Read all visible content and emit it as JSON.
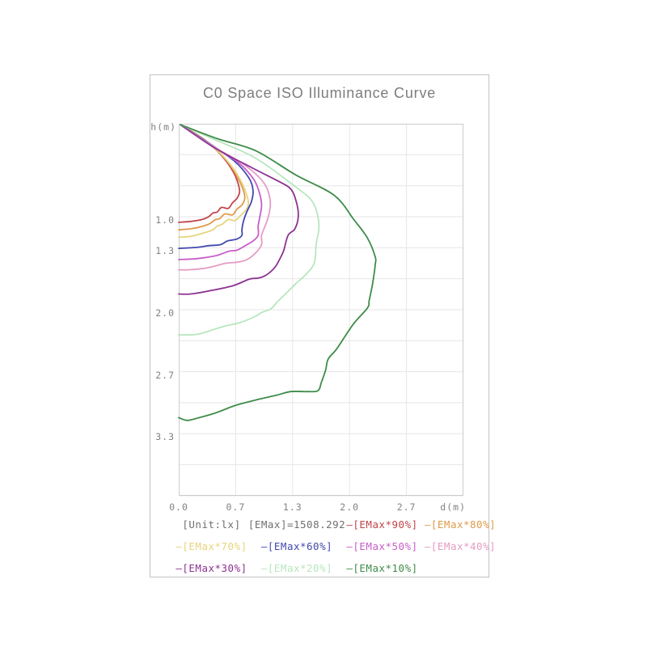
{
  "card": {
    "border_color": "#c6c6c6"
  },
  "colors": {
    "title_text": "#7d7d7d",
    "axis_text": "#828282",
    "info_text": "#6f6f6f",
    "grid": "#e6e6e6",
    "plot_border": "#cccccc"
  },
  "chart_data": {
    "type": "line",
    "title": "C0 Space ISO Illuminance Curve",
    "unit_label": "[Unit:lx]",
    "emax_label": "[EMax]=1508.292",
    "emax_lux": 1508.292,
    "x_axis": {
      "label": "d(m)",
      "range": [
        0,
        3.3333
      ],
      "grid_step": 0.6667,
      "ticks": [
        {
          "value": 0,
          "label": "0.0"
        },
        {
          "value": 0.6667,
          "label": "0.7"
        },
        {
          "value": 1.3333,
          "label": "1.3"
        },
        {
          "value": 2.0,
          "label": "2.0"
        },
        {
          "value": 2.6667,
          "label": "2.7"
        }
      ]
    },
    "y_axis": {
      "label": "h(m)",
      "range": [
        0,
        4.0
      ],
      "grid_step": 0.3333,
      "ticks": [
        {
          "value": 1.0,
          "label": "1.0"
        },
        {
          "value": 1.3333,
          "label": "1.3"
        },
        {
          "value": 2.0,
          "label": "2.0"
        },
        {
          "value": 2.6667,
          "label": "2.7"
        },
        {
          "value": 3.3333,
          "label": "3.3"
        }
      ]
    },
    "legend_info": [
      {
        "label": "[Unit:lx]",
        "color": "#6f6f6f"
      },
      {
        "label": "[EMax]=1508.292",
        "color": "#6f6f6f"
      }
    ],
    "series": [
      {
        "name": "[EMax*90%]",
        "percent": 90,
        "color": "#c2454b",
        "points": [
          [
            0.02,
            0.01
          ],
          [
            0.28,
            0.16
          ],
          [
            0.49,
            0.33
          ],
          [
            0.64,
            0.52
          ],
          [
            0.71,
            0.7
          ],
          [
            0.69,
            0.79
          ],
          [
            0.63,
            0.85
          ],
          [
            0.58,
            0.91
          ],
          [
            0.5,
            0.9
          ],
          [
            0.45,
            0.95
          ],
          [
            0.4,
            0.96
          ],
          [
            0.35,
            1.0
          ],
          [
            0.27,
            1.03
          ],
          [
            0.14,
            1.05
          ],
          [
            0.0,
            1.06
          ]
        ]
      },
      {
        "name": "[EMax*80%]",
        "percent": 80,
        "color": "#df9a4a",
        "points": [
          [
            0.02,
            0.01
          ],
          [
            0.3,
            0.17
          ],
          [
            0.53,
            0.36
          ],
          [
            0.68,
            0.56
          ],
          [
            0.77,
            0.76
          ],
          [
            0.75,
            0.86
          ],
          [
            0.68,
            0.92
          ],
          [
            0.63,
            0.98
          ],
          [
            0.54,
            0.97
          ],
          [
            0.48,
            1.02
          ],
          [
            0.43,
            1.03
          ],
          [
            0.37,
            1.07
          ],
          [
            0.29,
            1.1
          ],
          [
            0.14,
            1.13
          ],
          [
            0.0,
            1.14
          ]
        ]
      },
      {
        "name": "[EMax*70%]",
        "percent": 70,
        "color": "#e7d47e",
        "points": [
          [
            0.02,
            0.01
          ],
          [
            0.32,
            0.19
          ],
          [
            0.56,
            0.39
          ],
          [
            0.72,
            0.6
          ],
          [
            0.81,
            0.81
          ],
          [
            0.8,
            0.91
          ],
          [
            0.73,
            0.98
          ],
          [
            0.66,
            1.04
          ],
          [
            0.58,
            1.03
          ],
          [
            0.51,
            1.08
          ],
          [
            0.45,
            1.1
          ],
          [
            0.4,
            1.14
          ],
          [
            0.31,
            1.17
          ],
          [
            0.14,
            1.21
          ],
          [
            0.0,
            1.22
          ]
        ]
      },
      {
        "name": "[EMax*60%]",
        "percent": 60,
        "color": "#4149ae",
        "points": [
          [
            0.02,
            0.01
          ],
          [
            0.34,
            0.2
          ],
          [
            0.65,
            0.4
          ],
          [
            0.82,
            0.58
          ],
          [
            0.87,
            0.72
          ],
          [
            0.85,
            0.84
          ],
          [
            0.8,
            0.94
          ],
          [
            0.76,
            1.04
          ],
          [
            0.74,
            1.14
          ],
          [
            0.74,
            1.2
          ],
          [
            0.68,
            1.24
          ],
          [
            0.57,
            1.26
          ],
          [
            0.49,
            1.3
          ],
          [
            0.36,
            1.31
          ],
          [
            0.2,
            1.33
          ],
          [
            0.0,
            1.34
          ]
        ]
      },
      {
        "name": "[EMax*50%]",
        "percent": 50,
        "color": "#c75ec7",
        "points": [
          [
            0.02,
            0.01
          ],
          [
            0.36,
            0.22
          ],
          [
            0.7,
            0.42
          ],
          [
            0.88,
            0.6
          ],
          [
            0.95,
            0.76
          ],
          [
            0.97,
            0.88
          ],
          [
            0.95,
            1.0
          ],
          [
            0.93,
            1.1
          ],
          [
            0.93,
            1.2
          ],
          [
            0.87,
            1.26
          ],
          [
            0.78,
            1.31
          ],
          [
            0.68,
            1.36
          ],
          [
            0.59,
            1.37
          ],
          [
            0.43,
            1.42
          ],
          [
            0.21,
            1.45
          ],
          [
            0.0,
            1.46
          ]
        ]
      },
      {
        "name": "[EMax*40%]",
        "percent": 40,
        "color": "#e59cc3",
        "points": [
          [
            0.02,
            0.01
          ],
          [
            0.4,
            0.24
          ],
          [
            0.78,
            0.45
          ],
          [
            1.0,
            0.64
          ],
          [
            1.07,
            0.82
          ],
          [
            1.06,
            0.96
          ],
          [
            1.02,
            1.08
          ],
          [
            0.97,
            1.2
          ],
          [
            0.97,
            1.3
          ],
          [
            0.9,
            1.39
          ],
          [
            0.8,
            1.46
          ],
          [
            0.68,
            1.49
          ],
          [
            0.55,
            1.5
          ],
          [
            0.33,
            1.55
          ],
          [
            0.11,
            1.57
          ],
          [
            0.0,
            1.57
          ]
        ]
      },
      {
        "name": "[EMax*30%]",
        "percent": 30,
        "color": "#8c3292",
        "points": [
          [
            0.02,
            0.01
          ],
          [
            0.42,
            0.26
          ],
          [
            0.85,
            0.47
          ],
          [
            1.15,
            0.61
          ],
          [
            1.31,
            0.7
          ],
          [
            1.38,
            0.85
          ],
          [
            1.4,
            1.0
          ],
          [
            1.36,
            1.13
          ],
          [
            1.28,
            1.2
          ],
          [
            1.23,
            1.36
          ],
          [
            1.18,
            1.46
          ],
          [
            1.12,
            1.55
          ],
          [
            1.02,
            1.63
          ],
          [
            0.93,
            1.66
          ],
          [
            0.83,
            1.67
          ],
          [
            0.64,
            1.74
          ],
          [
            0.4,
            1.79
          ],
          [
            0.14,
            1.83
          ],
          [
            0.0,
            1.83
          ]
        ]
      },
      {
        "name": "[EMax*20%]",
        "percent": 20,
        "color": "#b7e6bd",
        "points": [
          [
            0.02,
            0.01
          ],
          [
            0.42,
            0.17
          ],
          [
            0.9,
            0.37
          ],
          [
            1.37,
            0.68
          ],
          [
            1.56,
            0.83
          ],
          [
            1.63,
            1.0
          ],
          [
            1.64,
            1.14
          ],
          [
            1.61,
            1.29
          ],
          [
            1.59,
            1.49
          ],
          [
            1.5,
            1.61
          ],
          [
            1.37,
            1.72
          ],
          [
            1.25,
            1.83
          ],
          [
            1.15,
            1.92
          ],
          [
            1.08,
            1.99
          ],
          [
            0.97,
            2.03
          ],
          [
            0.9,
            2.07
          ],
          [
            0.71,
            2.14
          ],
          [
            0.52,
            2.18
          ],
          [
            0.24,
            2.26
          ],
          [
            0.08,
            2.27
          ],
          [
            0.0,
            2.27
          ]
        ]
      },
      {
        "name": "[EMax*10%]",
        "percent": 10,
        "color": "#3e8c49",
        "points": [
          [
            0.02,
            0.01
          ],
          [
            0.45,
            0.16
          ],
          [
            0.9,
            0.29
          ],
          [
            1.37,
            0.55
          ],
          [
            1.82,
            0.77
          ],
          [
            2.05,
            1.03
          ],
          [
            2.21,
            1.23
          ],
          [
            2.3,
            1.43
          ],
          [
            2.3,
            1.52
          ],
          [
            2.27,
            1.72
          ],
          [
            2.23,
            1.9
          ],
          [
            2.21,
            1.98
          ],
          [
            2.04,
            2.16
          ],
          [
            1.85,
            2.42
          ],
          [
            1.75,
            2.53
          ],
          [
            1.72,
            2.65
          ],
          [
            1.67,
            2.78
          ],
          [
            1.63,
            2.87
          ],
          [
            1.5,
            2.88
          ],
          [
            1.31,
            2.88
          ],
          [
            1.14,
            2.92
          ],
          [
            0.9,
            2.97
          ],
          [
            0.66,
            3.03
          ],
          [
            0.43,
            3.11
          ],
          [
            0.24,
            3.16
          ],
          [
            0.1,
            3.19
          ],
          [
            0.0,
            3.16
          ]
        ]
      }
    ]
  }
}
